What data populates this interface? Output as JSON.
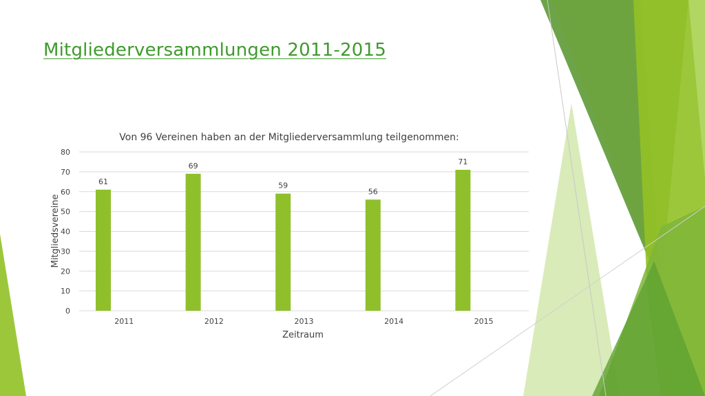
{
  "slide": {
    "title": "Mitgliederversammlungen 2011-2015",
    "title_color": "#3e9a2c",
    "accent_colors": [
      "#92c126",
      "#6da53a",
      "#c9e29a",
      "#4f8f2a"
    ]
  },
  "chart_data": {
    "type": "bar",
    "title": "Von 96 Vereinen haben an der Mitgliederversammlung teilgenommen:",
    "xlabel": "Zeitraum",
    "ylabel": "Mitgliedsvereine",
    "categories": [
      "2011",
      "2012",
      "2013",
      "2014",
      "2015"
    ],
    "values": [
      61,
      69,
      59,
      56,
      71
    ],
    "ylim": [
      0,
      80
    ],
    "yticks": [
      "0",
      "10",
      "20",
      "30",
      "40",
      "50",
      "60",
      "70",
      "80"
    ],
    "grid": true,
    "bar_color": "#8fc02c",
    "data_labels": true
  }
}
